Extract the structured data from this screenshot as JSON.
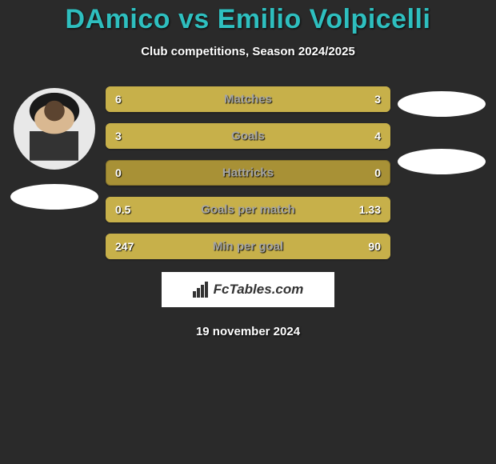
{
  "title": "DAmico vs Emilio Volpicelli",
  "subtitle": "Club competitions, Season 2024/2025",
  "date": "19 november 2024",
  "logo_text": "FcTables.com",
  "colors": {
    "title": "#2ebfbf",
    "bar_track": "#a89136",
    "bar_fill": "#c7b04a",
    "background": "#2a2a2a"
  },
  "bars": [
    {
      "label": "Matches",
      "left_val": "6",
      "right_val": "3",
      "left_pct": 66.7,
      "right_pct": 33.3,
      "track": "#a89136",
      "left_color": "#c7b04a",
      "right_color": "#c7b04a"
    },
    {
      "label": "Goals",
      "left_val": "3",
      "right_val": "4",
      "left_pct": 42.9,
      "right_pct": 57.1,
      "track": "#a89136",
      "left_color": "#c7b04a",
      "right_color": "#c7b04a"
    },
    {
      "label": "Hattricks",
      "left_val": "0",
      "right_val": "0",
      "left_pct": 0,
      "right_pct": 0,
      "track": "#a89136",
      "left_color": "#c7b04a",
      "right_color": "#c7b04a"
    },
    {
      "label": "Goals per match",
      "left_val": "0.5",
      "right_val": "1.33",
      "left_pct": 27.3,
      "right_pct": 72.7,
      "track": "#a89136",
      "left_color": "#c7b04a",
      "right_color": "#c7b04a"
    },
    {
      "label": "Min per goal",
      "left_val": "247",
      "right_val": "90",
      "left_pct": 73.3,
      "right_pct": 26.7,
      "track": "#a89136",
      "left_color": "#c7b04a",
      "right_color": "#c7b04a"
    }
  ]
}
